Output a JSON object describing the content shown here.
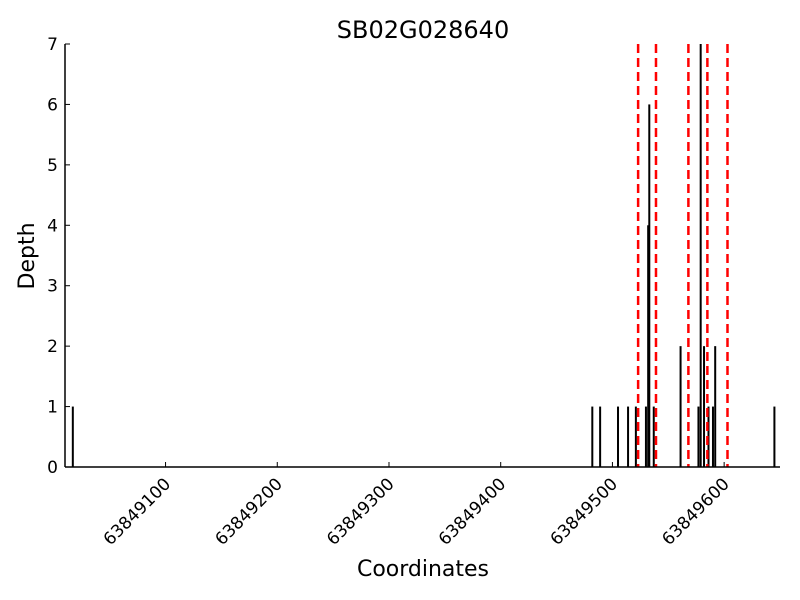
{
  "chart_data": {
    "type": "bar",
    "title": "SB02G028640",
    "xlabel": "Coordinates",
    "ylabel": "Depth",
    "xlim": [
      63849010,
      63849650
    ],
    "ylim": [
      0,
      7
    ],
    "grid": false,
    "x_ticks": [
      63849100,
      63849200,
      63849300,
      63849400,
      63849500,
      63849600
    ],
    "y_ticks": [
      0,
      1,
      2,
      3,
      4,
      5,
      6,
      7
    ],
    "series": [
      {
        "color": "#000000",
        "x": [
          63849017,
          63849482,
          63849489,
          63849505,
          63849514,
          63849521,
          63849530,
          63849532,
          63849533,
          63849537,
          63849561,
          63849577,
          63849579,
          63849582,
          63849586,
          63849590,
          63849592,
          63849645
        ],
        "values": [
          1,
          1,
          1,
          1,
          1,
          1,
          1,
          4,
          6,
          1,
          2,
          1,
          7,
          2,
          1,
          1,
          2,
          1
        ]
      }
    ],
    "vlines": {
      "color": "#ff0000",
      "style": "dashed",
      "x": [
        63849523,
        63849539,
        63849568,
        63849585,
        63849603
      ]
    }
  }
}
